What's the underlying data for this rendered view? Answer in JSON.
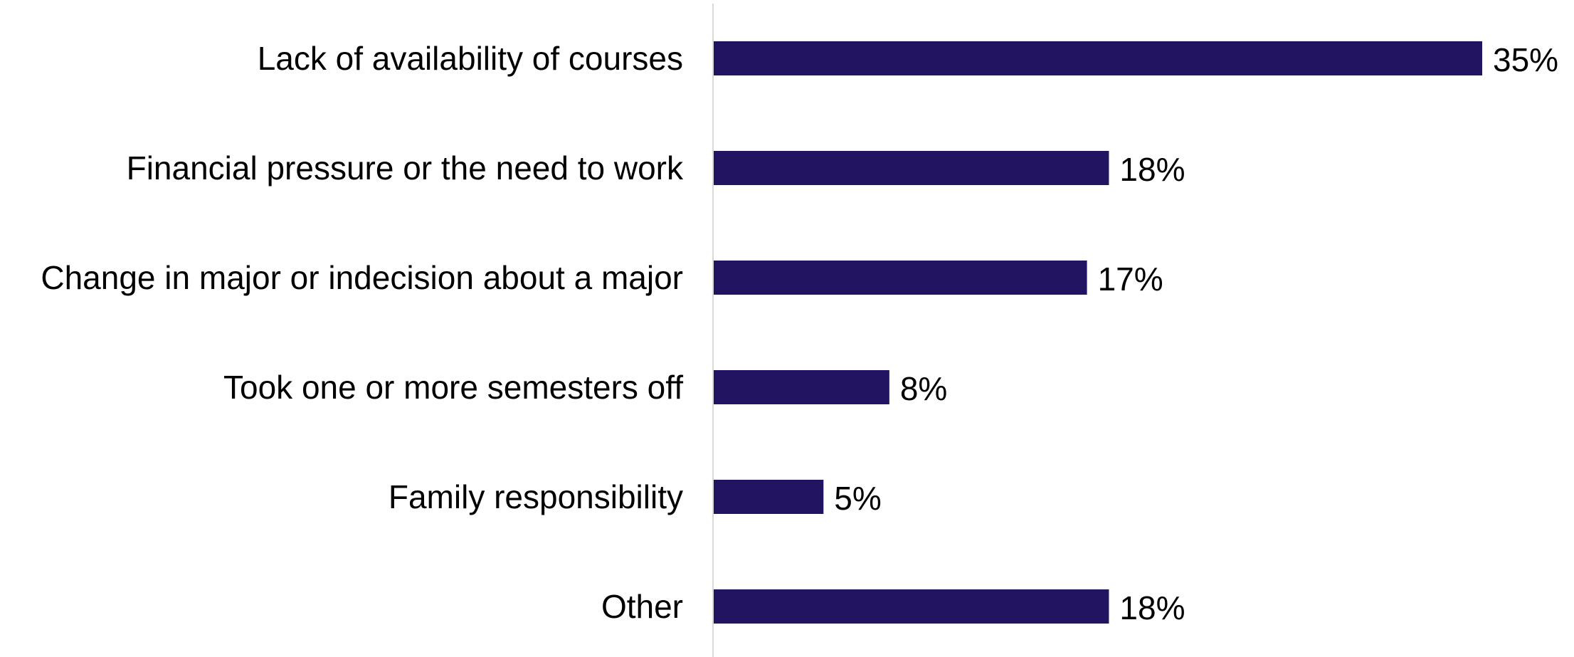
{
  "chart_data": {
    "type": "bar",
    "orientation": "horizontal",
    "categories": [
      "Lack of availability of courses",
      "Financial pressure or the need to work",
      "Change in major or indecision about a major",
      "Took one or more semesters off",
      "Family responsibility",
      "Other"
    ],
    "values": [
      35,
      18,
      17,
      8,
      5,
      18
    ],
    "value_labels": [
      "35%",
      "18%",
      "17%",
      "8%",
      "5%",
      "18%"
    ],
    "title": "",
    "xlabel": "",
    "ylabel": "",
    "xlim": [
      0,
      35
    ],
    "grid": false,
    "legend": false,
    "colors": {
      "bar": "#231462",
      "axis": "#d9d9d9",
      "text": "#000000"
    }
  }
}
